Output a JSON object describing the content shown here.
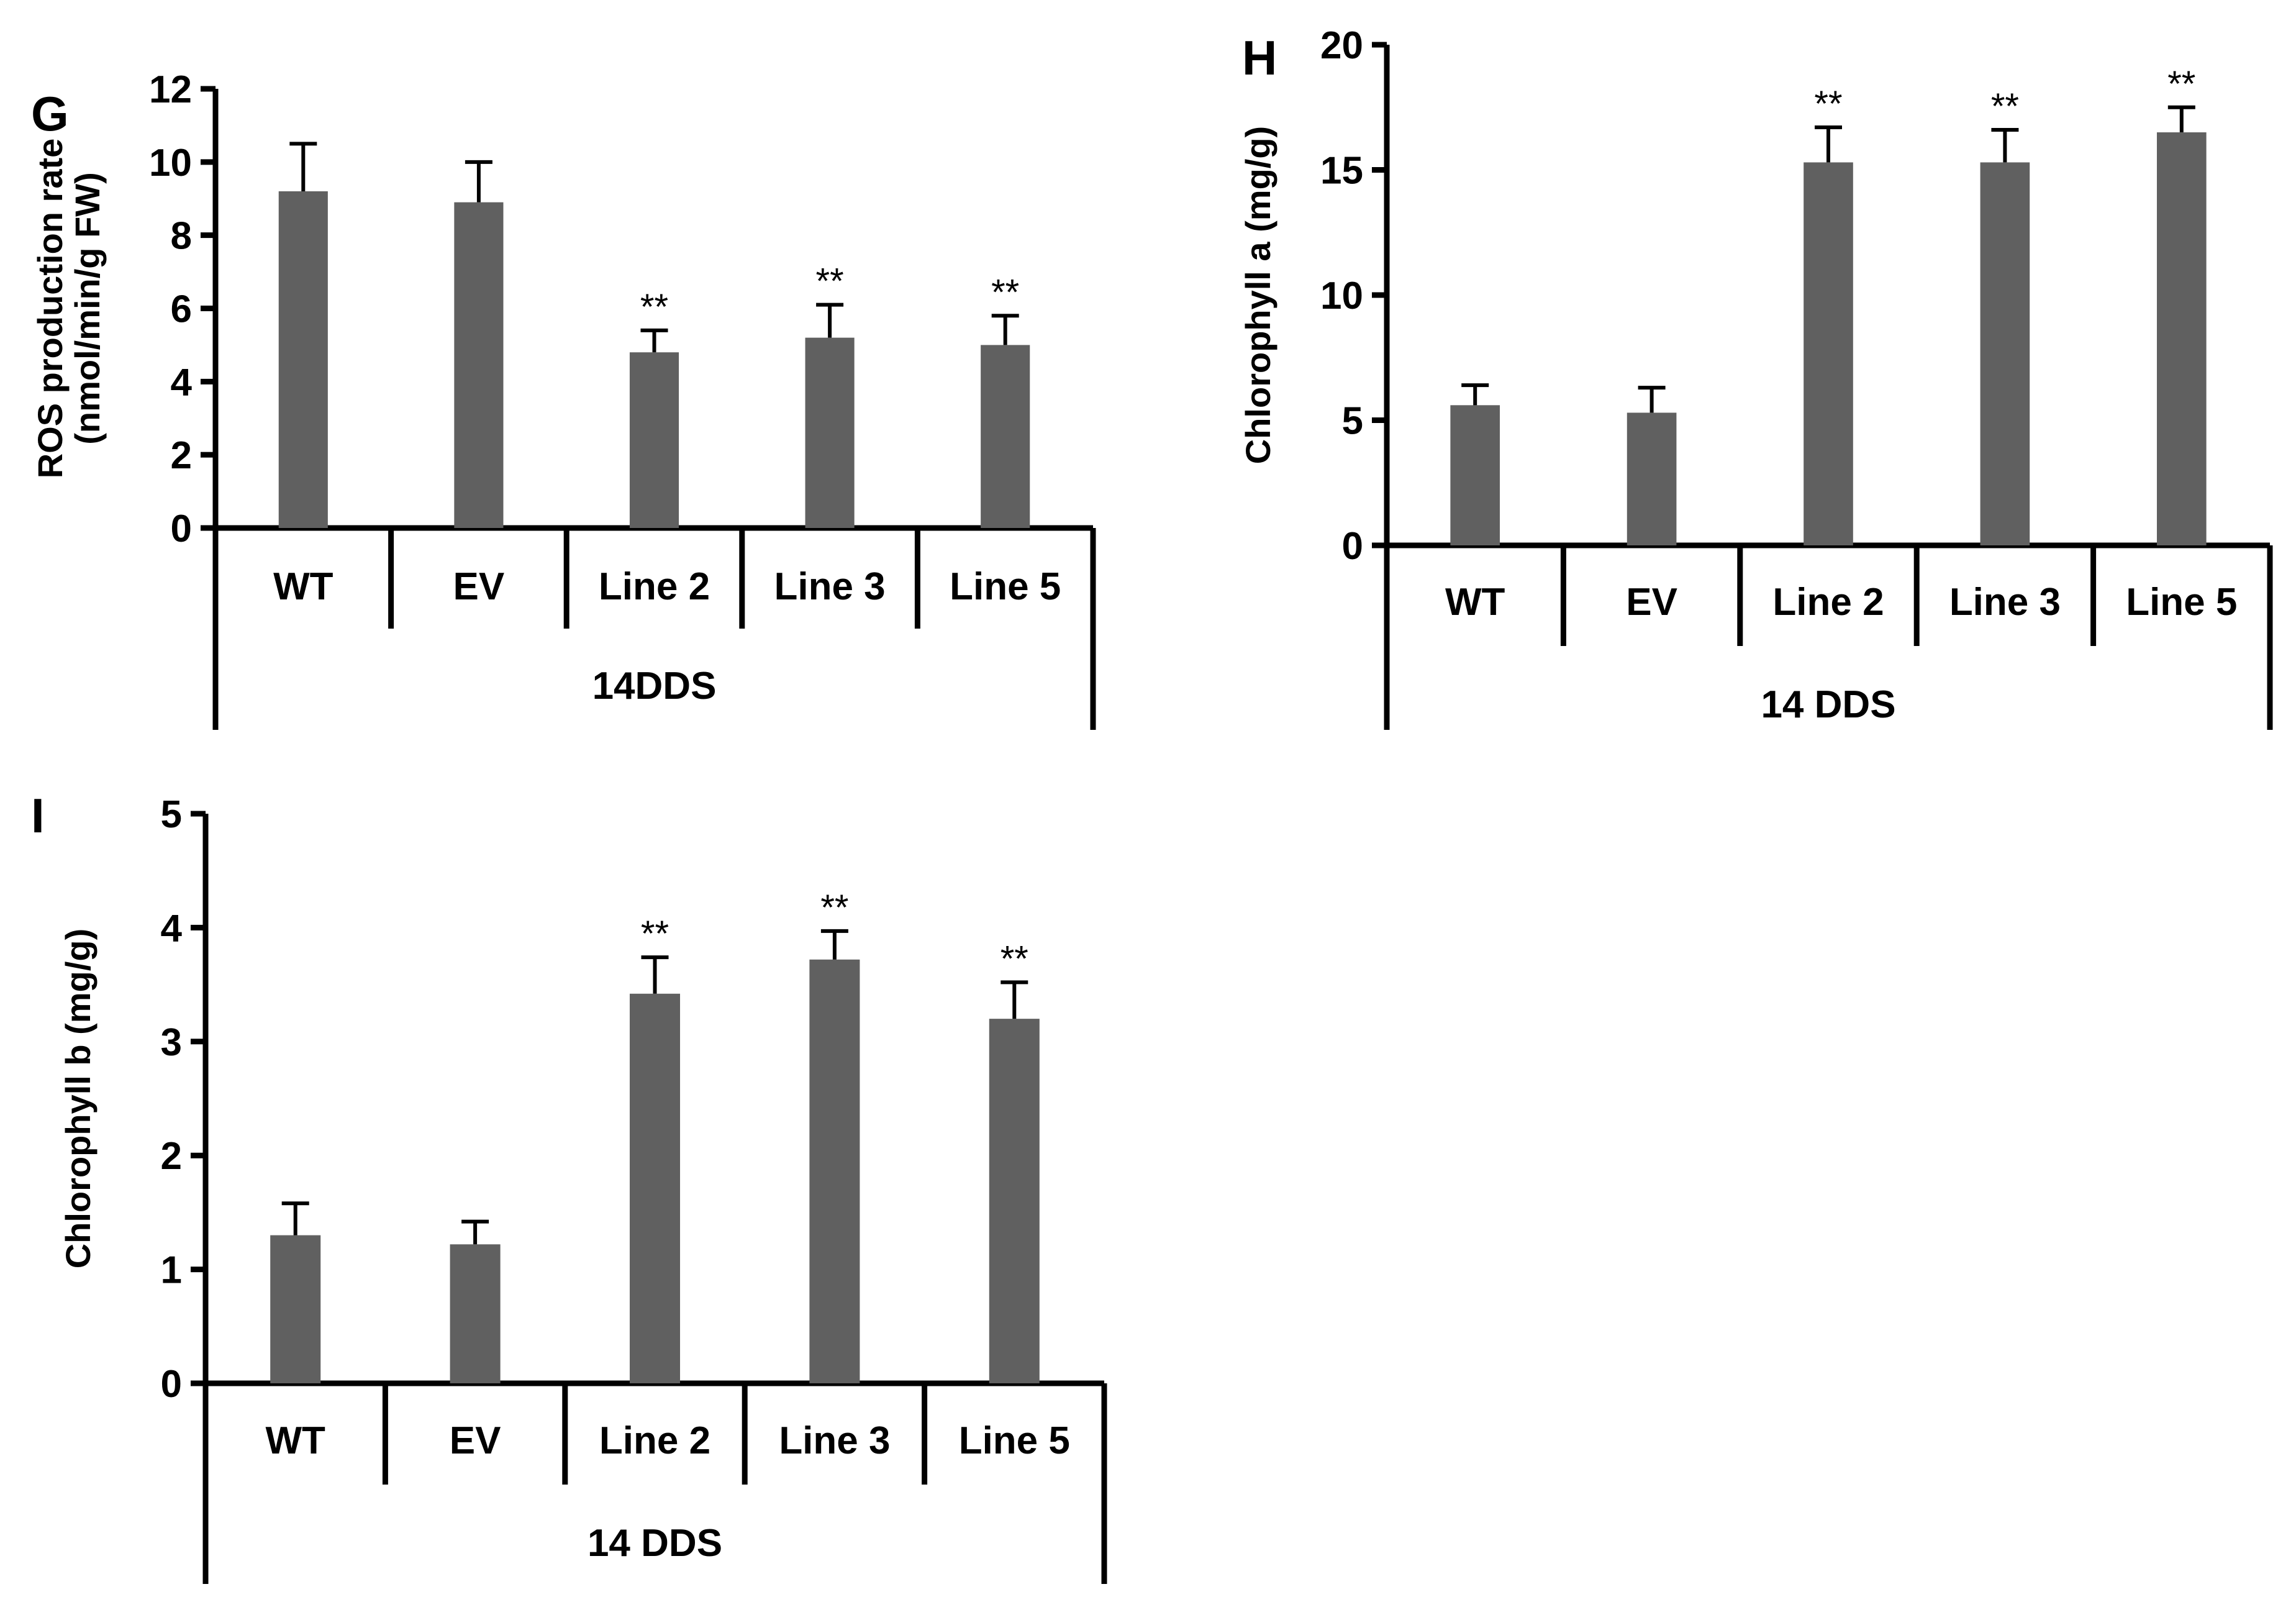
{
  "colors": {
    "bar": "#606060",
    "axis": "#000000"
  },
  "chart_data": [
    {
      "panel": "G",
      "type": "bar",
      "ylabel_line1": "ROS production rate",
      "ylabel_line2": "(nmol/min/g FW)",
      "group_label": "14DDS",
      "categories": [
        "WT",
        "EV",
        "Line 2",
        "Line 3",
        "Line 5"
      ],
      "values": [
        9.2,
        8.9,
        4.8,
        5.2,
        5.0
      ],
      "errors": [
        1.3,
        1.1,
        0.6,
        0.9,
        0.8
      ],
      "significance": [
        "",
        "",
        "**",
        "**",
        "**"
      ],
      "ylim": [
        0,
        12
      ],
      "yticks": [
        0,
        2,
        4,
        6,
        8,
        10,
        12
      ]
    },
    {
      "panel": "H",
      "type": "bar",
      "ylabel_line1": "Chlorophyll a (mg/g)",
      "ylabel_line2": "",
      "group_label": "14 DDS",
      "categories": [
        "WT",
        "EV",
        "Line 2",
        "Line 3",
        "Line 5"
      ],
      "values": [
        5.6,
        5.3,
        15.3,
        15.3,
        16.5
      ],
      "errors": [
        0.8,
        1.0,
        1.4,
        1.3,
        1.0
      ],
      "significance": [
        "",
        "",
        "**",
        "**",
        "**"
      ],
      "ylim": [
        0,
        20
      ],
      "yticks": [
        0,
        5,
        10,
        15,
        20
      ]
    },
    {
      "panel": "I",
      "type": "bar",
      "ylabel_line1": "Chlorophyll b (mg/g)",
      "ylabel_line2": "",
      "group_label": "14 DDS",
      "categories": [
        "WT",
        "EV",
        "Line 2",
        "Line 3",
        "Line 5"
      ],
      "values": [
        1.3,
        1.22,
        3.42,
        3.72,
        3.2
      ],
      "errors": [
        0.28,
        0.2,
        0.32,
        0.25,
        0.32
      ],
      "significance": [
        "",
        "",
        "**",
        "**",
        "**"
      ],
      "ylim": [
        0,
        5
      ],
      "yticks": [
        0,
        1,
        2,
        3,
        4,
        5
      ]
    }
  ]
}
